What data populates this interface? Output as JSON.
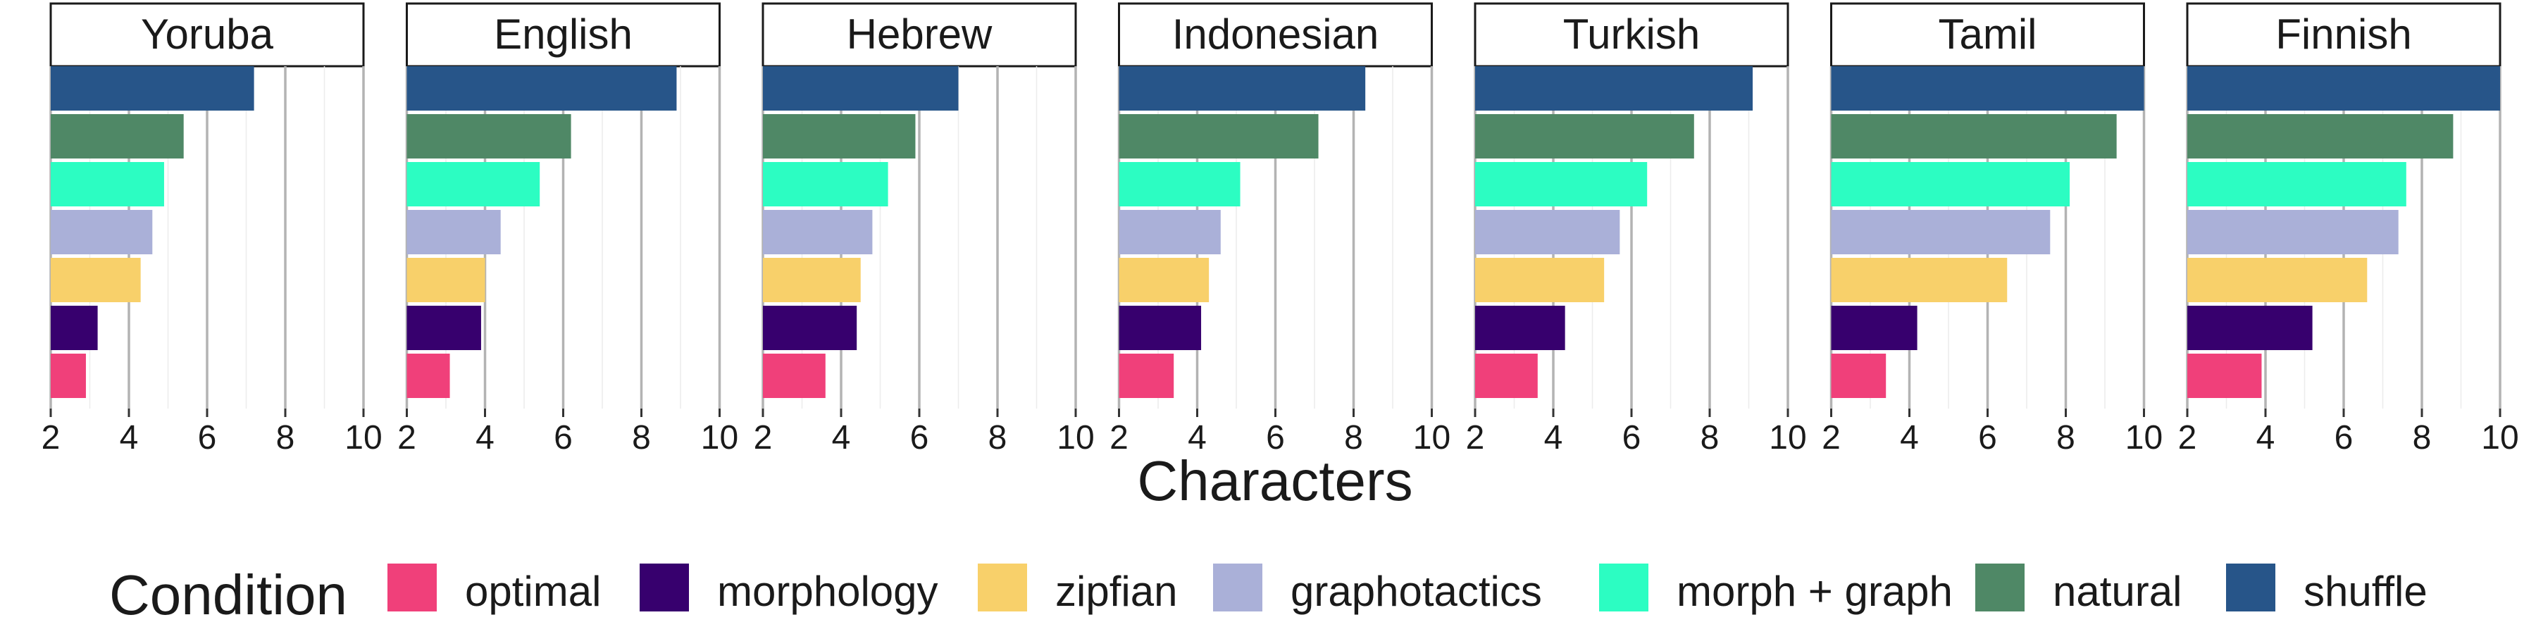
{
  "chart_data": {
    "type": "bar",
    "orientation": "horizontal",
    "facets": [
      "Yoruba",
      "English",
      "Hebrew",
      "Indonesian",
      "Turkish",
      "Tamil",
      "Finnish"
    ],
    "categories": [
      "optimal",
      "morphology",
      "zipfian",
      "graphotactics",
      "morph + graph",
      "natural",
      "shuffle"
    ],
    "series": [
      {
        "name": "optimal",
        "color": "#F0407A",
        "values": [
          2.9,
          3.1,
          3.6,
          3.4,
          3.6,
          3.4,
          3.9
        ]
      },
      {
        "name": "morphology",
        "color": "#37006E",
        "values": [
          3.2,
          3.9,
          4.4,
          4.1,
          4.3,
          4.2,
          5.2
        ]
      },
      {
        "name": "zipfian",
        "color": "#F8D06A",
        "values": [
          4.3,
          4.0,
          4.5,
          4.3,
          5.3,
          6.5,
          6.6
        ]
      },
      {
        "name": "graphotactics",
        "color": "#AAB0D8",
        "values": [
          4.6,
          4.4,
          4.8,
          4.6,
          5.7,
          7.6,
          7.4
        ]
      },
      {
        "name": "morph + graph",
        "color": "#2CFDC2",
        "values": [
          4.9,
          5.4,
          5.2,
          5.1,
          6.4,
          8.1,
          7.6
        ]
      },
      {
        "name": "natural",
        "color": "#4F8866",
        "values": [
          5.4,
          6.2,
          5.9,
          7.1,
          7.6,
          9.3,
          8.8
        ]
      },
      {
        "name": "shuffle",
        "color": "#275589",
        "values": [
          7.2,
          8.9,
          7.0,
          8.3,
          9.1,
          10.0,
          10.0
        ]
      }
    ],
    "xlim": [
      2,
      10
    ],
    "xticks": [
      "2",
      "4",
      "6",
      "8",
      "10"
    ],
    "xlabel": "Characters",
    "ylabel": "",
    "grid": true,
    "legend": {
      "title": "Condition",
      "position": "bottom",
      "items": [
        "optimal",
        "morphology",
        "zipfian",
        "graphotactics",
        "morph + graph",
        "natural",
        "shuffle"
      ]
    }
  }
}
